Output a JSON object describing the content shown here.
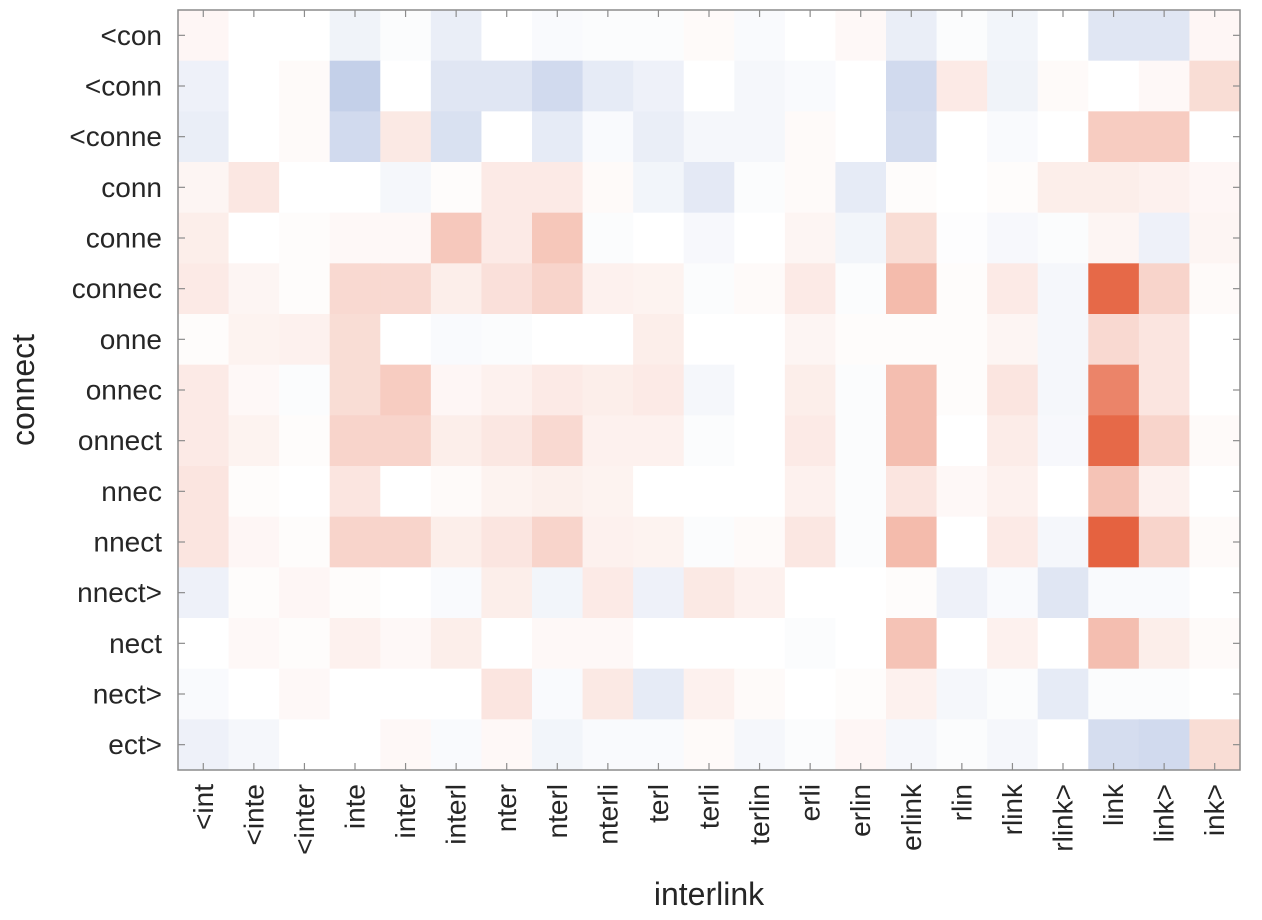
{
  "chart_data": {
    "type": "heatmap",
    "xlabel": "interlink",
    "ylabel": "connect",
    "x_categories": [
      "<int",
      "<inte",
      "<inter",
      "inte",
      "inter",
      "interl",
      "nter",
      "nterl",
      "nterli",
      "terl",
      "terli",
      "terlin",
      "erli",
      "erlin",
      "erlink",
      "rlin",
      "rlink",
      "rlink>",
      "link",
      "link>",
      "ink>"
    ],
    "y_categories": [
      "<con",
      "<conn",
      "<conne",
      "conn",
      "conne",
      "connec",
      "onne",
      "onnec",
      "onnect",
      "nnec",
      "nnect",
      "nnect>",
      "nect",
      "nect>",
      "ect>"
    ],
    "value_range": [
      -1,
      1
    ],
    "colormap": {
      "negative": "#2e56b0",
      "zero": "#ffffff",
      "positive": "#e3542f"
    },
    "grid": false,
    "colorbar": false,
    "values": [
      [
        0.05,
        0.0,
        0.0,
        -0.07,
        -0.02,
        -0.1,
        0.0,
        -0.03,
        -0.02,
        -0.02,
        0.03,
        -0.03,
        0.0,
        0.04,
        -0.1,
        -0.02,
        -0.06,
        0.0,
        -0.15,
        -0.15,
        0.05
      ],
      [
        -0.08,
        0.0,
        0.03,
        -0.28,
        0.0,
        -0.15,
        -0.15,
        -0.22,
        -0.12,
        -0.08,
        0.0,
        -0.05,
        -0.03,
        0.0,
        -0.22,
        0.12,
        -0.07,
        0.03,
        0.0,
        0.04,
        0.2
      ],
      [
        -0.1,
        0.0,
        0.03,
        -0.22,
        0.13,
        -0.18,
        0.0,
        -0.12,
        -0.03,
        -0.1,
        -0.05,
        -0.05,
        0.03,
        0.0,
        -0.2,
        0.0,
        -0.03,
        0.0,
        0.3,
        0.3,
        0.0
      ],
      [
        0.06,
        0.14,
        0.0,
        0.0,
        -0.05,
        0.02,
        0.12,
        0.12,
        0.03,
        -0.06,
        -0.13,
        -0.02,
        0.03,
        -0.12,
        0.02,
        0.0,
        0.02,
        0.1,
        0.1,
        0.08,
        0.05
      ],
      [
        0.1,
        0.0,
        0.02,
        0.04,
        0.04,
        0.32,
        0.12,
        0.33,
        -0.02,
        0.0,
        -0.04,
        0.0,
        0.06,
        -0.06,
        0.2,
        -0.01,
        -0.04,
        -0.02,
        0.06,
        -0.08,
        0.06
      ],
      [
        0.12,
        0.06,
        0.02,
        0.22,
        0.22,
        0.1,
        0.18,
        0.25,
        0.08,
        0.07,
        -0.02,
        0.03,
        0.12,
        -0.02,
        0.4,
        0.02,
        0.12,
        -0.05,
        0.88,
        0.25,
        0.03
      ],
      [
        0.02,
        0.07,
        0.08,
        0.2,
        0.0,
        -0.03,
        -0.02,
        0.0,
        0.0,
        0.1,
        0.0,
        0.0,
        0.06,
        0.02,
        0.02,
        0.02,
        0.06,
        -0.05,
        0.22,
        0.15,
        0.0
      ],
      [
        0.12,
        0.04,
        -0.02,
        0.2,
        0.3,
        0.05,
        0.08,
        0.12,
        0.1,
        0.12,
        -0.05,
        0.0,
        0.1,
        -0.02,
        0.38,
        0.02,
        0.15,
        -0.05,
        0.72,
        0.15,
        0.0
      ],
      [
        0.12,
        0.07,
        0.02,
        0.25,
        0.25,
        0.1,
        0.14,
        0.22,
        0.08,
        0.08,
        -0.02,
        0.0,
        0.12,
        -0.02,
        0.38,
        0.0,
        0.11,
        -0.04,
        0.88,
        0.25,
        0.03
      ],
      [
        0.15,
        0.02,
        0.0,
        0.15,
        0.0,
        0.03,
        0.07,
        0.09,
        0.07,
        0.0,
        0.0,
        0.0,
        0.08,
        -0.02,
        0.15,
        0.04,
        0.08,
        0.0,
        0.35,
        0.08,
        0.0
      ],
      [
        0.15,
        0.05,
        0.02,
        0.25,
        0.25,
        0.1,
        0.15,
        0.25,
        0.08,
        0.07,
        -0.02,
        0.03,
        0.14,
        -0.02,
        0.4,
        0.0,
        0.12,
        -0.05,
        0.92,
        0.25,
        0.03
      ],
      [
        -0.08,
        0.02,
        0.05,
        0.02,
        0.0,
        -0.03,
        0.1,
        -0.06,
        0.12,
        -0.08,
        0.13,
        0.08,
        0.0,
        0.0,
        0.02,
        -0.08,
        -0.03,
        -0.15,
        -0.03,
        -0.03,
        0.0
      ],
      [
        0.0,
        0.04,
        0.02,
        0.08,
        0.04,
        0.1,
        0.0,
        0.04,
        0.04,
        0.0,
        0.0,
        0.0,
        -0.02,
        0.0,
        0.35,
        0.0,
        0.08,
        0.0,
        0.38,
        0.1,
        0.03
      ],
      [
        -0.03,
        0.0,
        0.04,
        0.0,
        0.0,
        0.0,
        0.15,
        -0.03,
        0.13,
        -0.12,
        0.08,
        0.03,
        0.0,
        0.02,
        0.08,
        -0.05,
        -0.02,
        -0.12,
        -0.02,
        -0.02,
        0.0
      ],
      [
        -0.08,
        -0.05,
        0.0,
        0.0,
        0.04,
        -0.03,
        0.04,
        -0.06,
        -0.03,
        -0.03,
        0.03,
        -0.05,
        -0.02,
        0.05,
        -0.05,
        -0.02,
        -0.05,
        0.0,
        -0.2,
        -0.22,
        0.2
      ]
    ]
  }
}
